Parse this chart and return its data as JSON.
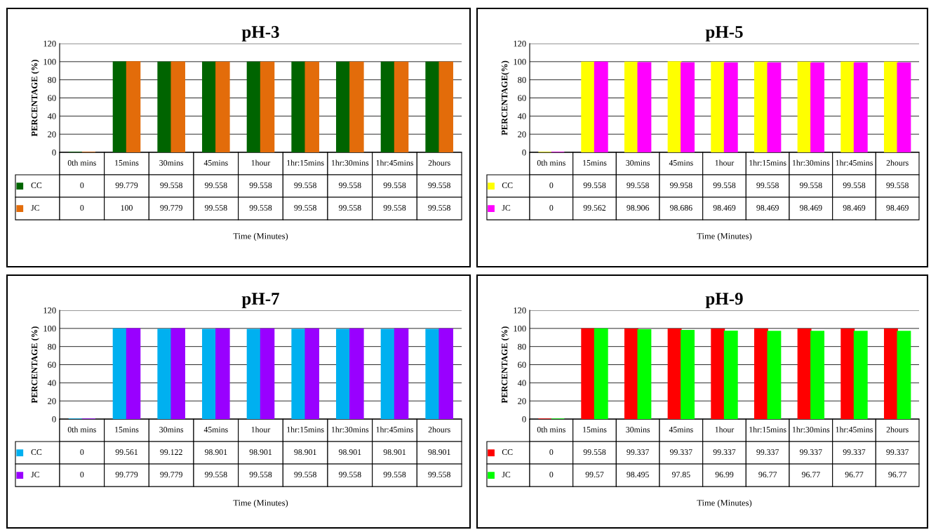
{
  "chart_data": [
    {
      "type": "bar",
      "title": "pH-3",
      "ylabel": "PERCENTAGE (%)",
      "xlabel": "Time (Minutes)",
      "categories": [
        "0th mins",
        "15mins",
        "30mins",
        "45mins",
        "1hour",
        "1hr:15mins",
        "1hr:30mins",
        "1hr:45mins",
        "2hours"
      ],
      "series": [
        {
          "name": "CC",
          "color": "#006400",
          "values": [
            0,
            99.779,
            99.558,
            99.558,
            99.558,
            99.558,
            99.558,
            99.558,
            99.558
          ]
        },
        {
          "name": "JC",
          "color": "#e36c0a",
          "values": [
            0,
            100,
            99.779,
            99.558,
            99.558,
            99.558,
            99.558,
            99.558,
            99.558
          ]
        }
      ],
      "ylim": [
        0,
        120
      ],
      "yticks": [
        0,
        20,
        40,
        60,
        80,
        100,
        120
      ],
      "grid": "y",
      "data_labels": true,
      "legend": "bottom",
      "tick_labels": "y"
    },
    {
      "type": "bar",
      "title": "pH-5",
      "ylabel": "PERCENTAGE(%)",
      "xlabel": "Time (Minutes)",
      "categories": [
        "0th mins",
        "15mins",
        "30mins",
        "45mins",
        "1hour",
        "1hr:15mins",
        "1hr:30mins",
        "1hr:45mins",
        "2hours"
      ],
      "series": [
        {
          "name": "CC",
          "color": "#ffff00",
          "values": [
            0,
            99.558,
            99.558,
            99.958,
            99.558,
            99.558,
            99.558,
            99.558,
            99.558
          ]
        },
        {
          "name": "JC",
          "color": "#ff00ff",
          "values": [
            0,
            99.562,
            98.906,
            98.686,
            98.469,
            98.469,
            98.469,
            98.469,
            98.469
          ]
        }
      ],
      "ylim": [
        0,
        120
      ],
      "yticks": [
        0,
        20,
        40,
        60,
        80,
        100,
        120
      ],
      "grid": "y",
      "data_labels": true,
      "legend": "bottom",
      "tick_labels": "y"
    },
    {
      "type": "bar",
      "title": "pH-7",
      "ylabel": "PERCENTAGE (%)",
      "xlabel": "Time (Minutes)",
      "categories": [
        "0th mins",
        "15mins",
        "30mins",
        "45mins",
        "1hour",
        "1hr:15mins",
        "1hr:30mins",
        "1hr:45mins",
        "2hours"
      ],
      "series": [
        {
          "name": "CC",
          "color": "#00b0f0",
          "values": [
            0,
            99.561,
            99.122,
            98.901,
            98.901,
            98.901,
            98.901,
            98.901,
            98.901
          ]
        },
        {
          "name": "JC",
          "color": "#9900ff",
          "values": [
            0,
            99.779,
            99.779,
            99.558,
            99.558,
            99.558,
            99.558,
            99.558,
            99.558
          ]
        }
      ],
      "ylim": [
        0,
        120
      ],
      "yticks": [
        0,
        20,
        40,
        60,
        80,
        100,
        120
      ],
      "grid": "y",
      "data_labels": true,
      "legend": "bottom",
      "tick_labels": "y"
    },
    {
      "type": "bar",
      "title": "pH-9",
      "ylabel": "PERCENTAGE (%)",
      "xlabel": "Time (Minutes)",
      "categories": [
        "0th mins",
        "15mins",
        "30mins",
        "45mins",
        "1hour",
        "1hr:15mins",
        "1hr:30mins",
        "1hr:45mins",
        "2hours"
      ],
      "series": [
        {
          "name": "CC",
          "color": "#ff0000",
          "values": [
            0,
            99.558,
            99.337,
            99.337,
            99.337,
            99.337,
            99.337,
            99.337,
            99.337
          ]
        },
        {
          "name": "JC",
          "color": "#00ff00",
          "values": [
            0,
            99.57,
            98.495,
            97.85,
            96.99,
            96.77,
            96.77,
            96.77,
            96.77
          ]
        }
      ],
      "ylim": [
        0,
        120
      ],
      "yticks": [
        0,
        20,
        40,
        60,
        80,
        100,
        120
      ],
      "grid": "y",
      "data_labels": true,
      "legend": "bottom",
      "tick_labels": "y"
    }
  ]
}
